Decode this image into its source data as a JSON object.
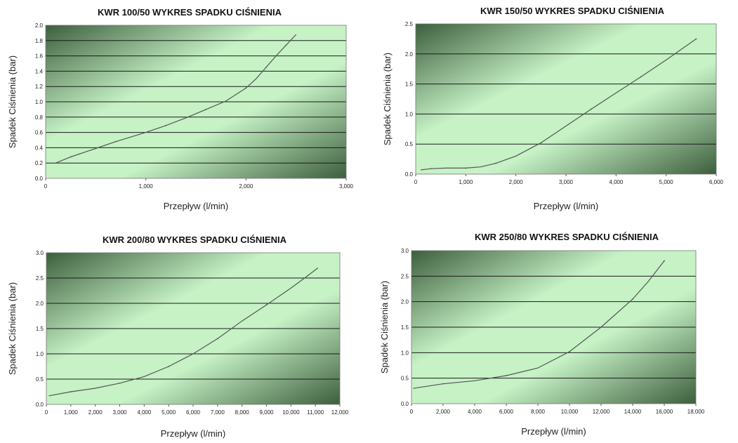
{
  "chart_data": [
    {
      "type": "line",
      "title": "KWR 100/50 WYKRES SPADKU CIŚNIENIA",
      "xlabel": "Przepływ (l/min)",
      "ylabel": "Spadek Ciśnienia (bar)",
      "xlim": [
        0,
        3000
      ],
      "ylim": [
        0,
        2.0
      ],
      "x_ticks": [
        "0",
        "1,000",
        "2,000",
        "3,000"
      ],
      "y_ticks": [
        "0.0",
        "0.2",
        "0.4",
        "0.6",
        "0.8",
        "1.0",
        "1.2",
        "1.4",
        "1.6",
        "1.8",
        "2.0"
      ],
      "grid": true,
      "series": [
        {
          "x": [
            100,
            250,
            500,
            700,
            1000,
            1200,
            1400,
            1600,
            1800,
            2000,
            2100,
            2200,
            2300,
            2400,
            2500
          ],
          "y": [
            0.2,
            0.28,
            0.39,
            0.48,
            0.6,
            0.69,
            0.79,
            0.9,
            1.01,
            1.18,
            1.3,
            1.45,
            1.6,
            1.74,
            1.88
          ]
        }
      ]
    },
    {
      "type": "line",
      "title": "KWR 150/50 WYKRES SPADKU CIŚNIENIA",
      "xlabel": "Przepływ (l/min)",
      "ylabel": "Spadek Ciśnienia (bar)",
      "xlim": [
        0,
        6000
      ],
      "ylim": [
        0,
        2.5
      ],
      "x_ticks": [
        "0",
        "1,000",
        "2,000",
        "3,000",
        "4,000",
        "5,000",
        "6,000"
      ],
      "y_ticks": [
        "0.0",
        "0.5",
        "1.0",
        "1.5",
        "2.0",
        "2.5"
      ],
      "grid": true,
      "series": [
        {
          "x": [
            100,
            300,
            600,
            1000,
            1300,
            1600,
            2000,
            2500,
            3000,
            3500,
            4000,
            4500,
            5000,
            5600
          ],
          "y": [
            0.07,
            0.09,
            0.1,
            0.1,
            0.12,
            0.18,
            0.3,
            0.52,
            0.8,
            1.08,
            1.35,
            1.62,
            1.9,
            2.25
          ]
        }
      ]
    },
    {
      "type": "line",
      "title": "KWR 200/80 WYKRES SPADKU CIŚNIENIA",
      "xlabel": "Przepływ (l/min)",
      "ylabel": "Spadek Ciśnienia (bar)",
      "xlim": [
        0,
        12000
      ],
      "ylim": [
        0,
        3.0
      ],
      "x_ticks": [
        "0",
        "1,000",
        "2,000",
        "3,000",
        "4,000",
        "5,000",
        "6,000",
        "7,000",
        "8,000",
        "9,000",
        "10,000",
        "11,000",
        "12,000"
      ],
      "y_ticks": [
        "0.0",
        "0.5",
        "1.0",
        "1.5",
        "2.0",
        "2.5",
        "3.0"
      ],
      "grid": true,
      "series": [
        {
          "x": [
            100,
            1000,
            2000,
            3000,
            4000,
            5000,
            6000,
            7000,
            8000,
            9000,
            10000,
            10700,
            11100
          ],
          "y": [
            0.17,
            0.25,
            0.32,
            0.42,
            0.55,
            0.75,
            1.0,
            1.3,
            1.65,
            1.97,
            2.3,
            2.55,
            2.7
          ]
        }
      ]
    },
    {
      "type": "line",
      "title": "KWR 250/80 WYKRES SPADKU CIŚNIENIA",
      "xlabel": "Przepływ (l/min)",
      "ylabel": "Spadek Ciśnienia (bar)",
      "xlim": [
        0,
        18000
      ],
      "ylim": [
        0,
        3.0
      ],
      "x_ticks": [
        "0",
        "2,000",
        "4,000",
        "6,000",
        "8,000",
        "10,000",
        "12,000",
        "14,000",
        "16,000",
        "18,000"
      ],
      "y_ticks": [
        "0.0",
        "0.5",
        "1.0",
        "1.5",
        "2.0",
        "2.5",
        "3.0"
      ],
      "grid": true,
      "series": [
        {
          "x": [
            100,
            2000,
            4000,
            6000,
            8000,
            10000,
            12000,
            14000,
            15000,
            16000
          ],
          "y": [
            0.3,
            0.39,
            0.45,
            0.55,
            0.7,
            1.02,
            1.5,
            2.05,
            2.4,
            2.8
          ]
        }
      ]
    }
  ]
}
